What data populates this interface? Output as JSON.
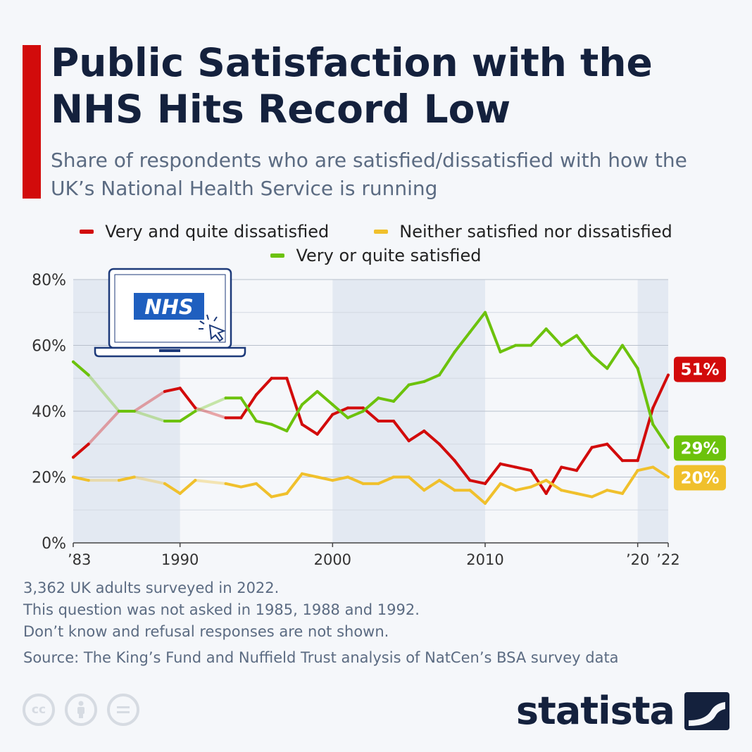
{
  "header": {
    "title": "Public Satisfaction with the NHS Hits Record Low",
    "subtitle": "Share of respondents who are satisfied/dissatisfied with how the UK’s National Health Service is running"
  },
  "legend": [
    {
      "label": "Very and quite dissatisfied",
      "color": "#d20b0b"
    },
    {
      "label": "Neither satisfied nor dissatisfied",
      "color": "#f0c02c"
    },
    {
      "label": "Very or quite satisfied",
      "color": "#6cc20c"
    }
  ],
  "illustration": {
    "laptop_screen_text": "NHS",
    "icon": "laptop-icon",
    "cursor_icon": "cursor-click-icon"
  },
  "chart_data": {
    "type": "line",
    "x_tick_labels": [
      {
        "year": 1983,
        "label": "’83"
      },
      {
        "year": 1990,
        "label": "1990"
      },
      {
        "year": 2000,
        "label": "2000"
      },
      {
        "year": 2010,
        "label": "2010"
      },
      {
        "year": 2020,
        "label": "’20"
      },
      {
        "year": 2022,
        "label": "’22"
      }
    ],
    "y_ticks": [
      0,
      20,
      40,
      60,
      80
    ],
    "y_tick_labels": [
      "0%",
      "20%",
      "40%",
      "60%",
      "80%"
    ],
    "ylim": [
      0,
      80
    ],
    "xlim": [
      1983,
      2022
    ],
    "grid": true,
    "shaded_bands": [
      [
        1983,
        1990
      ],
      [
        2000,
        2010
      ],
      [
        2020,
        2022
      ]
    ],
    "gap_years": [
      1985,
      1988,
      1992
    ],
    "series": [
      {
        "name": "Very and quite dissatisfied",
        "color": "#d20b0b",
        "end_label": "51%",
        "points": [
          [
            1983,
            26
          ],
          [
            1984,
            30
          ],
          [
            1986,
            40
          ],
          [
            1987,
            40
          ],
          [
            1989,
            46
          ],
          [
            1990,
            47
          ],
          [
            1991,
            41
          ],
          [
            1993,
            38
          ],
          [
            1994,
            38
          ],
          [
            1995,
            45
          ],
          [
            1996,
            50
          ],
          [
            1997,
            50
          ],
          [
            1998,
            36
          ],
          [
            1999,
            33
          ],
          [
            2000,
            39
          ],
          [
            2001,
            41
          ],
          [
            2002,
            41
          ],
          [
            2003,
            37
          ],
          [
            2004,
            37
          ],
          [
            2005,
            31
          ],
          [
            2006,
            34
          ],
          [
            2007,
            30
          ],
          [
            2008,
            25
          ],
          [
            2009,
            19
          ],
          [
            2010,
            18
          ],
          [
            2011,
            24
          ],
          [
            2012,
            23
          ],
          [
            2013,
            22
          ],
          [
            2014,
            15
          ],
          [
            2015,
            23
          ],
          [
            2016,
            22
          ],
          [
            2017,
            29
          ],
          [
            2018,
            30
          ],
          [
            2019,
            25
          ],
          [
            2020,
            25
          ],
          [
            2021,
            41
          ],
          [
            2022,
            51
          ]
        ]
      },
      {
        "name": "Neither satisfied nor dissatisfied",
        "color": "#f0c02c",
        "end_label": "20%",
        "points": [
          [
            1983,
            20
          ],
          [
            1984,
            19
          ],
          [
            1986,
            19
          ],
          [
            1987,
            20
          ],
          [
            1989,
            18
          ],
          [
            1990,
            15
          ],
          [
            1991,
            19
          ],
          [
            1993,
            18
          ],
          [
            1994,
            17
          ],
          [
            1995,
            18
          ],
          [
            1996,
            14
          ],
          [
            1997,
            15
          ],
          [
            1998,
            21
          ],
          [
            1999,
            20
          ],
          [
            2000,
            19
          ],
          [
            2001,
            20
          ],
          [
            2002,
            18
          ],
          [
            2003,
            18
          ],
          [
            2004,
            20
          ],
          [
            2005,
            20
          ],
          [
            2006,
            16
          ],
          [
            2007,
            19
          ],
          [
            2008,
            16
          ],
          [
            2009,
            16
          ],
          [
            2010,
            12
          ],
          [
            2011,
            18
          ],
          [
            2012,
            16
          ],
          [
            2013,
            17
          ],
          [
            2014,
            19
          ],
          [
            2015,
            16
          ],
          [
            2016,
            15
          ],
          [
            2017,
            14
          ],
          [
            2018,
            16
          ],
          [
            2019,
            15
          ],
          [
            2020,
            22
          ],
          [
            2021,
            23
          ],
          [
            2022,
            20
          ]
        ]
      },
      {
        "name": "Very or quite satisfied",
        "color": "#6cc20c",
        "end_label": "29%",
        "points": [
          [
            1983,
            55
          ],
          [
            1984,
            51
          ],
          [
            1986,
            40
          ],
          [
            1987,
            40
          ],
          [
            1989,
            37
          ],
          [
            1990,
            37
          ],
          [
            1991,
            40
          ],
          [
            1993,
            44
          ],
          [
            1994,
            44
          ],
          [
            1995,
            37
          ],
          [
            1996,
            36
          ],
          [
            1997,
            34
          ],
          [
            1998,
            42
          ],
          [
            1999,
            46
          ],
          [
            2000,
            42
          ],
          [
            2001,
            38
          ],
          [
            2002,
            40
          ],
          [
            2003,
            44
          ],
          [
            2004,
            43
          ],
          [
            2005,
            48
          ],
          [
            2006,
            49
          ],
          [
            2007,
            51
          ],
          [
            2008,
            58
          ],
          [
            2009,
            64
          ],
          [
            2010,
            70
          ],
          [
            2011,
            58
          ],
          [
            2012,
            60
          ],
          [
            2013,
            60
          ],
          [
            2014,
            65
          ],
          [
            2015,
            60
          ],
          [
            2016,
            63
          ],
          [
            2017,
            57
          ],
          [
            2018,
            53
          ],
          [
            2019,
            60
          ],
          [
            2020,
            53
          ],
          [
            2021,
            36
          ],
          [
            2022,
            29
          ]
        ]
      }
    ]
  },
  "footnotes": [
    "3,362 UK adults surveyed in 2022.",
    "This question was not asked in 1985, 1988 and 1992.",
    "Don’t know and refusal responses are not shown."
  ],
  "source": "Source: The King’s Fund and Nuffield Trust analysis of NatCen’s BSA survey data",
  "brand": {
    "name": "statista",
    "icon": "statista-logo-icon"
  },
  "license_icons": [
    "cc-icon",
    "attribution-icon",
    "no-derivatives-icon"
  ]
}
